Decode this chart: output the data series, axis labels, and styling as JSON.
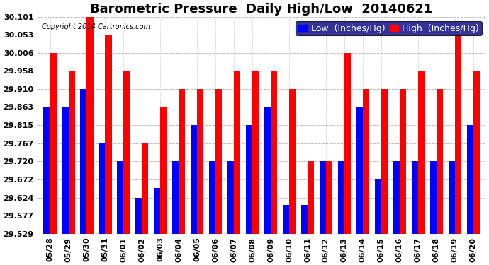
{
  "title": "Barometric Pressure  Daily High/Low  20140621",
  "copyright": "Copyright 2014 Cartronics.com",
  "legend_low": "Low  (Inches/Hg)",
  "legend_high": "High  (Inches/Hg)",
  "dates": [
    "05/28",
    "05/29",
    "05/30",
    "05/31",
    "06/01",
    "06/02",
    "06/03",
    "06/04",
    "06/05",
    "06/06",
    "06/07",
    "06/08",
    "06/09",
    "06/10",
    "06/11",
    "06/12",
    "06/13",
    "06/14",
    "06/15",
    "06/16",
    "06/17",
    "06/18",
    "06/19",
    "06/20"
  ],
  "low": [
    29.863,
    29.863,
    29.91,
    29.767,
    29.72,
    29.624,
    29.65,
    29.72,
    29.815,
    29.72,
    29.72,
    29.815,
    29.863,
    29.605,
    29.605,
    29.72,
    29.72,
    29.863,
    29.672,
    29.72,
    29.72,
    29.72,
    29.72,
    29.815
  ],
  "high": [
    30.006,
    29.958,
    30.101,
    30.053,
    29.958,
    29.767,
    29.863,
    29.91,
    29.91,
    29.91,
    29.958,
    29.958,
    29.958,
    29.91,
    29.72,
    29.72,
    30.006,
    29.91,
    29.91,
    29.91,
    29.958,
    29.91,
    30.053,
    29.958
  ],
  "ymin": 29.529,
  "ymax": 30.101,
  "yticks": [
    29.529,
    29.577,
    29.624,
    29.672,
    29.72,
    29.767,
    29.815,
    29.863,
    29.91,
    29.958,
    30.006,
    30.053,
    30.101
  ],
  "bar_width": 0.35,
  "low_color": "#0000ff",
  "high_color": "#ff0000",
  "background_color": "#ffffff",
  "grid_color": "#aaaaaa",
  "title_fontsize": 13,
  "axis_fontsize": 9,
  "tick_fontsize": 8,
  "copyright_fontsize": 7
}
